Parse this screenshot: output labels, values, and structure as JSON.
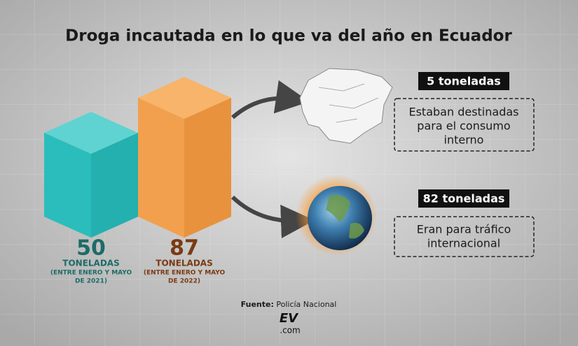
{
  "title": "Droga incautada en lo que va del año en Ecuador",
  "items": [
    {
      "value": "50",
      "unit": "TONELADAS",
      "period": [
        "(ENTRE ENERO Y MAYO",
        "DE 2021)"
      ]
    },
    {
      "value": "87",
      "unit": "TONELADAS",
      "period": [
        "(ENTRE ENERO Y MAYO",
        "DE 2022)"
      ]
    }
  ],
  "destinations": [
    {
      "amount": "5 toneladas",
      "description": [
        "Estaban destinadas",
        "para el consumo",
        "interno"
      ]
    },
    {
      "amount": "82 toneladas",
      "description": [
        "Eran para tráfico",
        "internacional"
      ]
    }
  ],
  "source": {
    "label": "Fuente:",
    "text": "Policía Nacional"
  },
  "logo": {
    "mark": "EV",
    "suffix": ".com"
  }
}
